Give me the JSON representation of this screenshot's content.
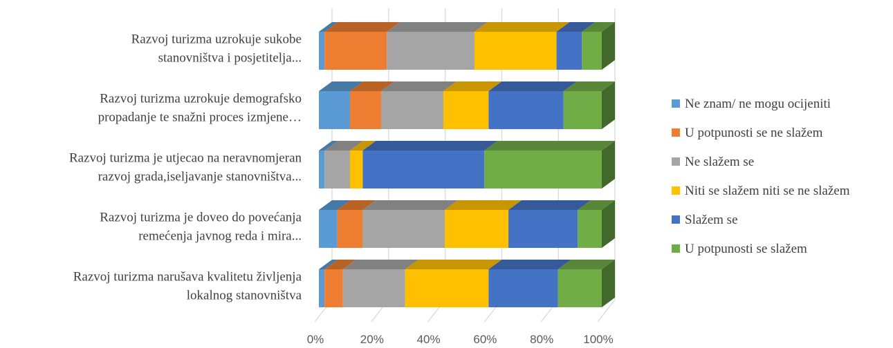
{
  "chart_data": {
    "type": "bar",
    "orientation": "horizontal",
    "stacked": "percent",
    "three_d": true,
    "categories": [
      [
        "Razvoj turizma uzrokuje sukobe",
        "stanovništva i posjetitelja..."
      ],
      [
        "Razvoj turizma uzrokuje demografsko",
        "propadanje te snažni proces izmjene…"
      ],
      [
        "Razvoj turizma je utjecao na neravnomjeran",
        "razvoj grada,iseljavanje stanovništva..."
      ],
      [
        "Razvoj turizma je doveo do povećanja",
        "remećenja javnog reda i mira..."
      ],
      [
        "Razvoj turizma narušava kvalitetu življenja",
        "lokalnog stanovništva"
      ]
    ],
    "series": [
      {
        "name": "Ne znam/ ne mogu ocijeniti",
        "color": "#5B9BD5",
        "values": [
          2,
          11,
          2,
          6.5,
          2
        ]
      },
      {
        "name": "U potpunosti se ne slažem",
        "color": "#ED7D31",
        "values": [
          22,
          11,
          0,
          9,
          6.5
        ]
      },
      {
        "name": "Ne slažem se",
        "color": "#A5A5A5",
        "values": [
          31,
          22,
          9,
          29,
          22
        ]
      },
      {
        "name": "Niti se slažem niti se ne slažem",
        "color": "#FFC000",
        "values": [
          29,
          16,
          4.5,
          22.5,
          29.5
        ]
      },
      {
        "name": "Slažem se",
        "color": "#4472C4",
        "values": [
          9,
          26.5,
          43,
          24.5,
          24.5
        ]
      },
      {
        "name": "U potpunosti se slažem",
        "color": "#70AD47",
        "values": [
          7,
          13.5,
          41.5,
          8.5,
          15.5
        ]
      }
    ],
    "x_ticks": [
      "0%",
      "20%",
      "40%",
      "60%",
      "80%",
      "100%"
    ],
    "xlim": [
      0,
      100
    ],
    "legend_position": "right",
    "grid": true
  }
}
